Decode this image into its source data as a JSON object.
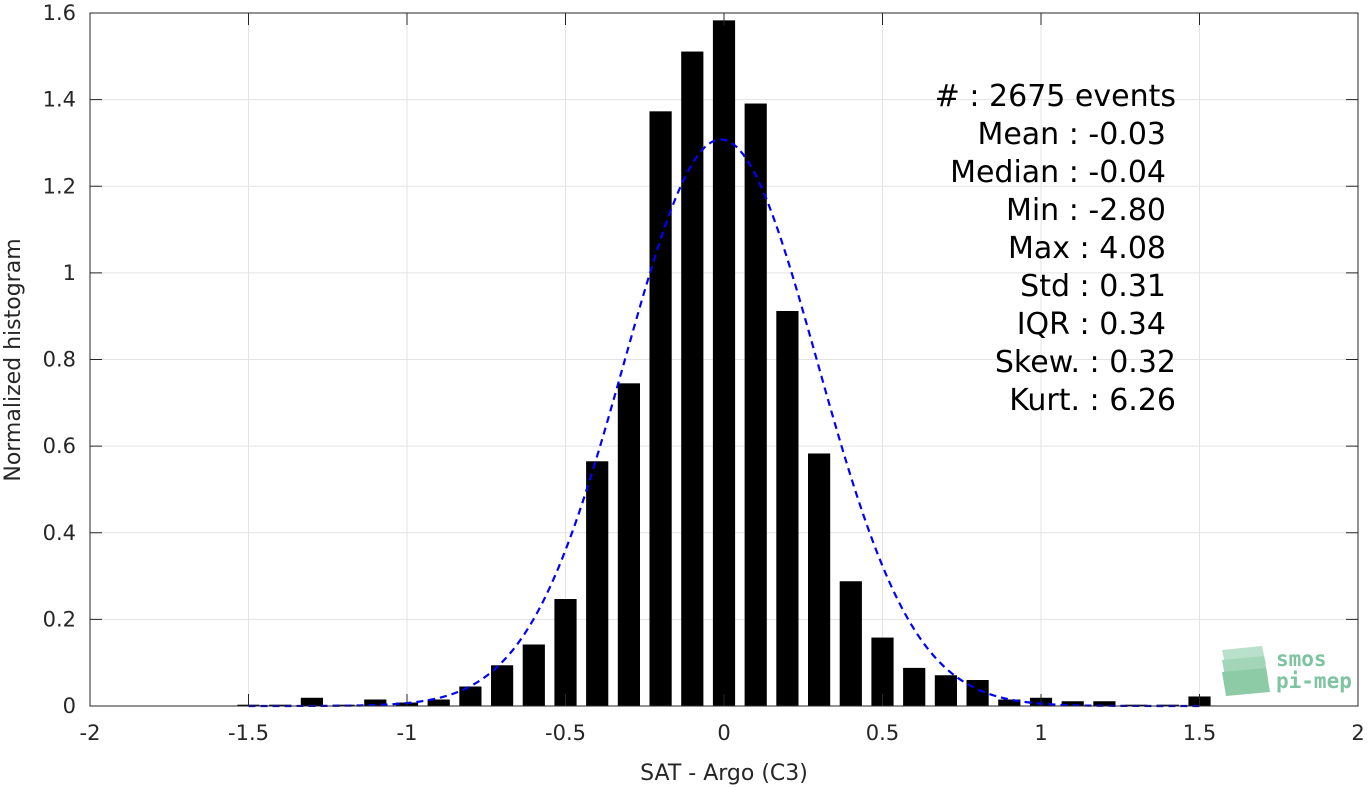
{
  "chart_data": {
    "type": "bar",
    "xlabel": "SAT - Argo (C3)",
    "ylabel": "Normalized histogram",
    "xlim": [
      -2,
      2
    ],
    "ylim": [
      0,
      1.6
    ],
    "x_ticks": [
      -2,
      -1.5,
      -1,
      -0.5,
      0,
      0.5,
      1,
      1.5,
      2
    ],
    "x_tick_labels": [
      "-2",
      "-1.5",
      "-1",
      "-0.5",
      "0",
      "0.5",
      "1",
      "1.5",
      "2"
    ],
    "y_ticks": [
      0,
      0.2,
      0.4,
      0.6,
      0.8,
      1,
      1.2,
      1.4,
      1.6
    ],
    "y_tick_labels": [
      "0",
      "0.2",
      "0.4",
      "0.6",
      "0.8",
      "1",
      "1.2",
      "1.4",
      "1.6"
    ],
    "grid": true,
    "bar_color": "#000000",
    "bin_width": 0.1,
    "bins": {
      "x": [
        -1.5,
        -1.4,
        -1.3,
        -1.2,
        -1.1,
        -1.0,
        -0.9,
        -0.8,
        -0.7,
        -0.6,
        -0.5,
        -0.4,
        -0.3,
        -0.2,
        -0.1,
        0.0,
        0.1,
        0.2,
        0.3,
        0.4,
        0.5,
        0.6,
        0.7,
        0.8,
        0.9,
        1.0,
        1.1,
        1.2,
        1.3,
        1.4,
        1.5
      ],
      "values": [
        0.003,
        0.003,
        0.019,
        0.003,
        0.015,
        0.008,
        0.015,
        0.045,
        0.094,
        0.142,
        0.247,
        0.565,
        0.745,
        1.373,
        1.511,
        1.583,
        1.391,
        0.912,
        0.583,
        0.288,
        0.158,
        0.088,
        0.071,
        0.06,
        0.015,
        0.019,
        0.011,
        0.011,
        0.003,
        0.003,
        0.022
      ]
    },
    "fit": {
      "type": "gaussian",
      "mean": -0.01,
      "std": 0.305,
      "color": "#0000ff",
      "line_style": "dashed"
    },
    "stats": [
      "#  : 2675 events",
      "Mean : -0.03",
      "Median : -0.04",
      "Min : -2.80",
      "Max : 4.08",
      "Std : 0.31",
      "IQR : 0.34",
      "Skew. : 0.32",
      "Kurt. : 6.26"
    ]
  },
  "logo": {
    "line1": "smos",
    "line2": "pi-mep",
    "color": "#7fc4a0"
  }
}
